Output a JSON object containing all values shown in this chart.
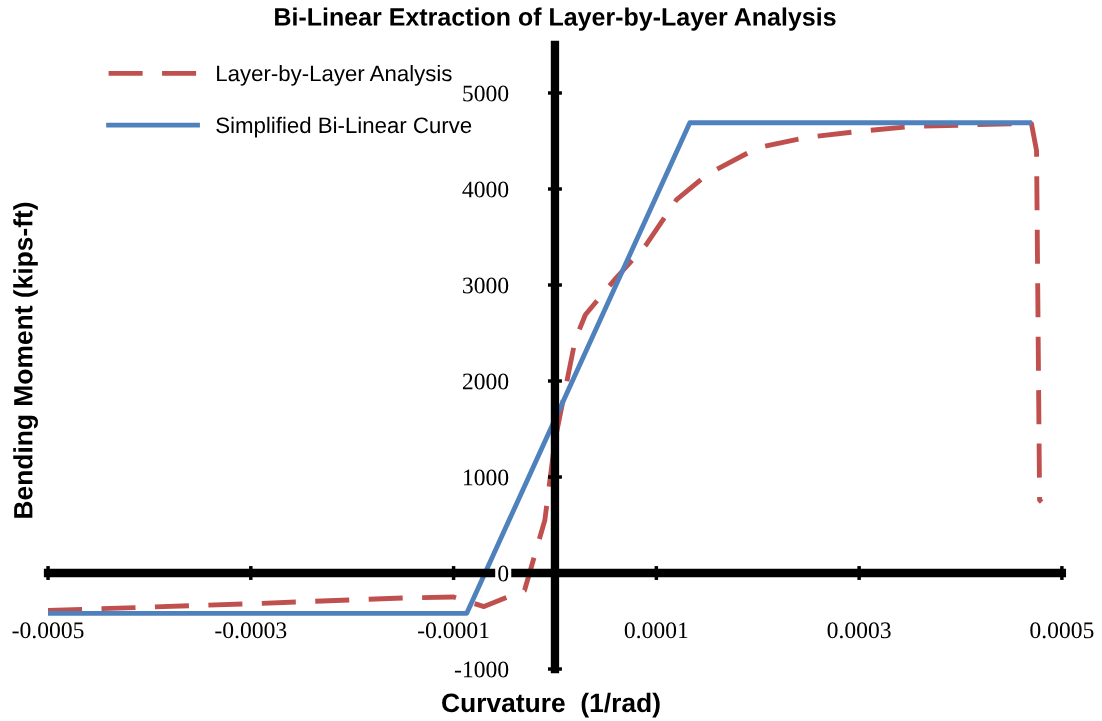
{
  "chart_data": {
    "type": "line",
    "title": "Bi-Linear Extraction of Layer-by-Layer Analysis",
    "xlabel": "Curvature  (1/rad)",
    "ylabel": "Bending Moment (kips-ft)",
    "xlim": [
      -0.0005,
      0.0005
    ],
    "ylim": [
      -1000,
      5500
    ],
    "xticks": [
      -0.0005,
      -0.0003,
      -0.0001,
      0.0001,
      0.0003,
      0.0005
    ],
    "yticks": [
      -1000,
      0,
      1000,
      2000,
      3000,
      4000,
      5000
    ],
    "grid": false,
    "legend": "top left",
    "marker": "none",
    "series": [
      {
        "name": "Layer-by-Layer Analysis",
        "color": "#c0504d",
        "line_style": "dashed",
        "x": [
          -0.0005,
          -0.0003,
          -0.00015,
          -0.0001,
          -7e-05,
          -3e-05,
          -1e-05,
          0,
          2e-05,
          3e-05,
          6e-05,
          9e-05,
          0.00012,
          0.00015,
          0.0002,
          0.00025,
          0.0003,
          0.00035,
          0.00045,
          0.00047,
          0.000475,
          0.000478,
          0.00048
        ],
        "values": [
          -390,
          -320,
          -260,
          -250,
          -350,
          -180,
          550,
          1380,
          2430,
          2690,
          3070,
          3420,
          3890,
          4150,
          4430,
          4540,
          4600,
          4650,
          4680,
          4680,
          4400,
          760,
          740
        ]
      },
      {
        "name": "Simplified Bi-Linear Curve",
        "color": "#4f81bd",
        "line_style": "solid",
        "x": [
          -0.0005,
          -8.7e-05,
          0.000133,
          0.000468
        ],
        "values": [
          -420,
          -420,
          4690,
          4690
        ]
      }
    ]
  }
}
